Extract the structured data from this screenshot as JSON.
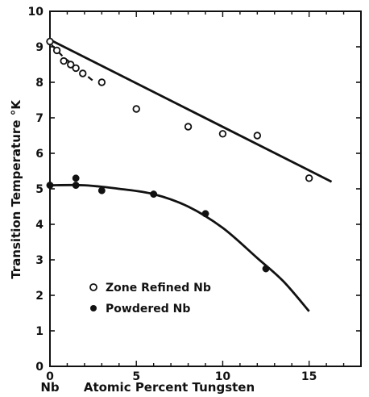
{
  "colors": {
    "ink": "#111111",
    "background": "#ffffff"
  },
  "chart_data": {
    "type": "scatter",
    "title": "",
    "xlabel": "Atomic Percent Tungsten",
    "ylabel": "Transition Temperature °K",
    "xlim": [
      0,
      18
    ],
    "ylim": [
      0,
      10
    ],
    "x_ticks": [
      {
        "value": 0,
        "label": "0"
      },
      {
        "value": 5,
        "label": "5"
      },
      {
        "value": 10,
        "label": "10"
      },
      {
        "value": 15,
        "label": "15"
      }
    ],
    "x_origin_label": "Nb",
    "y_ticks": [
      0,
      1,
      2,
      3,
      4,
      5,
      6,
      7,
      8,
      9,
      10
    ],
    "grid": false,
    "legend": {
      "placement": "lower-left",
      "entries": [
        {
          "label": "Zone Refined Nb",
          "marker": "open-circle"
        },
        {
          "label": "Powdered Nb",
          "marker": "filled-circle"
        }
      ]
    },
    "series": [
      {
        "name": "Zone Refined Nb",
        "marker": "open-circle",
        "points": [
          {
            "x": 0.0,
            "y": 9.15
          },
          {
            "x": 0.4,
            "y": 8.9
          },
          {
            "x": 0.8,
            "y": 8.6
          },
          {
            "x": 1.2,
            "y": 8.5
          },
          {
            "x": 1.5,
            "y": 8.4
          },
          {
            "x": 1.9,
            "y": 8.25
          },
          {
            "x": 3.0,
            "y": 8.0
          },
          {
            "x": 5.0,
            "y": 7.25
          },
          {
            "x": 8.0,
            "y": 6.75
          },
          {
            "x": 10.0,
            "y": 6.55
          },
          {
            "x": 12.0,
            "y": 6.5
          },
          {
            "x": 15.0,
            "y": 5.3
          }
        ]
      },
      {
        "name": "Powdered Nb",
        "marker": "filled-circle",
        "points": [
          {
            "x": 0.0,
            "y": 5.1
          },
          {
            "x": 1.5,
            "y": 5.3
          },
          {
            "x": 1.5,
            "y": 5.1
          },
          {
            "x": 3.0,
            "y": 4.95
          },
          {
            "x": 6.0,
            "y": 4.85
          },
          {
            "x": 9.0,
            "y": 4.3
          },
          {
            "x": 12.5,
            "y": 2.75
          }
        ]
      }
    ],
    "lines": [
      {
        "style": "solid",
        "points": [
          {
            "x": 0,
            "y": 9.2
          },
          {
            "x": 16.3,
            "y": 5.2
          }
        ]
      },
      {
        "style": "dashed",
        "points": [
          {
            "x": 0.1,
            "y": 9.05
          },
          {
            "x": 0.8,
            "y": 8.7
          },
          {
            "x": 1.6,
            "y": 8.4
          },
          {
            "x": 2.6,
            "y": 8.0
          }
        ]
      },
      {
        "style": "solid-curve",
        "points": [
          {
            "x": 0,
            "y": 5.1
          },
          {
            "x": 2,
            "y": 5.1
          },
          {
            "x": 4,
            "y": 5.0
          },
          {
            "x": 6,
            "y": 4.85
          },
          {
            "x": 8,
            "y": 4.5
          },
          {
            "x": 10,
            "y": 3.9
          },
          {
            "x": 12,
            "y": 3.05
          },
          {
            "x": 13.5,
            "y": 2.4
          },
          {
            "x": 15,
            "y": 1.55
          }
        ]
      }
    ]
  }
}
